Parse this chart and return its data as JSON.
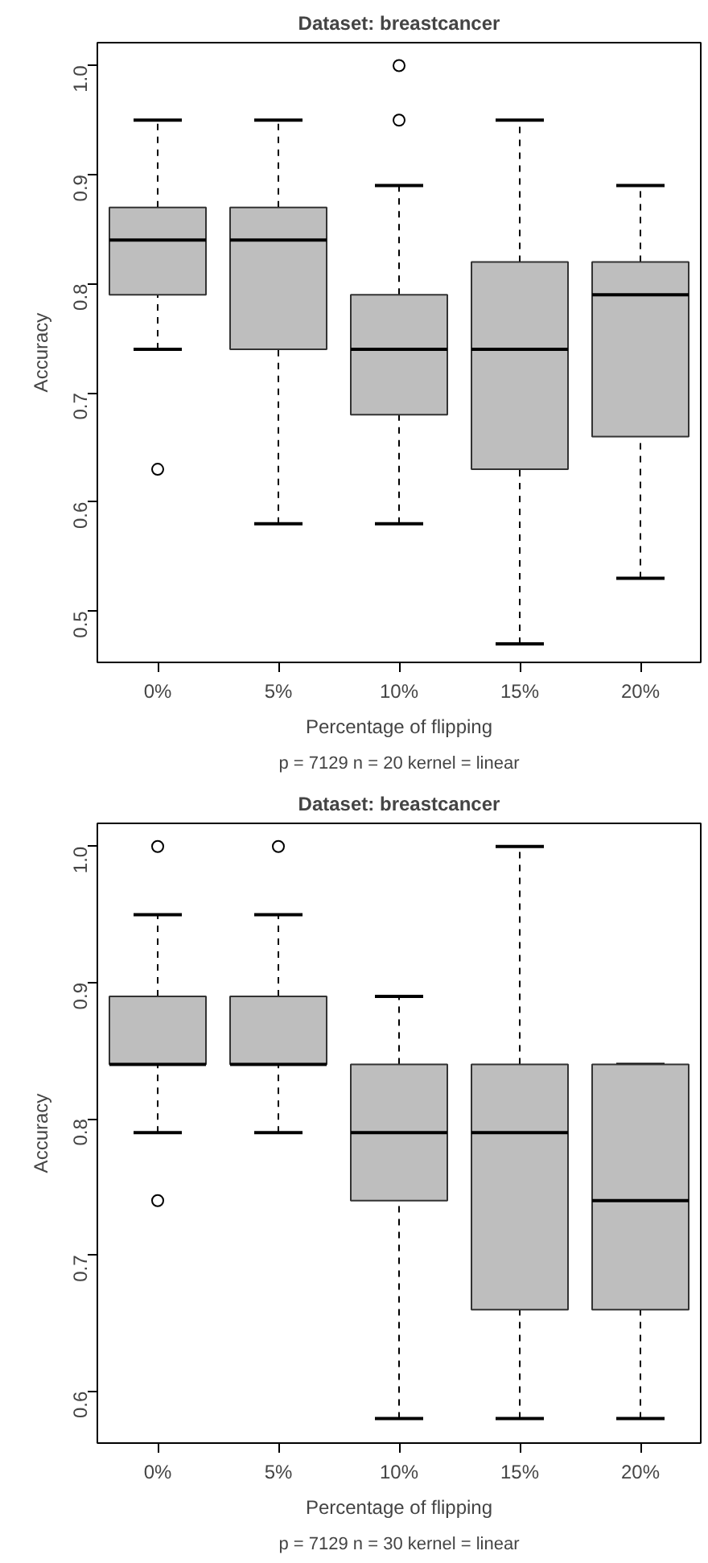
{
  "chart_data": [
    {
      "type": "box",
      "title": "Dataset: breastcancer",
      "subtitle": "p = 7129 n = 20 kernel = linear",
      "xlabel": "Percentage of flipping",
      "ylabel": "Accuracy",
      "categories": [
        "0%",
        "5%",
        "10%",
        "15%",
        "20%"
      ],
      "color": "#bebebe",
      "ylim": [
        0.453,
        1.021
      ],
      "yticks": [
        {
          "value": 0.5,
          "label": "0.5"
        },
        {
          "value": 0.6,
          "label": "0.6"
        },
        {
          "value": 0.7,
          "label": "0.7"
        },
        {
          "value": 0.8,
          "label": "0.8"
        },
        {
          "value": 0.9,
          "label": "0.9"
        },
        {
          "value": 1.0,
          "label": "1.0"
        }
      ],
      "boxes": [
        {
          "low": 0.74,
          "q1": 0.79,
          "median": 0.84,
          "q3": 0.87,
          "high": 0.95,
          "outliers": [
            0.63
          ]
        },
        {
          "low": 0.58,
          "q1": 0.74,
          "median": 0.84,
          "q3": 0.87,
          "high": 0.95
        },
        {
          "low": 0.58,
          "q1": 0.68,
          "median": 0.74,
          "q3": 0.79,
          "high": 0.89,
          "outliers": [
            1.0,
            0.95
          ]
        },
        {
          "low": 0.47,
          "q1": 0.63,
          "median": 0.74,
          "q3": 0.82,
          "high": 0.95
        },
        {
          "low": 0.53,
          "q1": 0.66,
          "median": 0.79,
          "q3": 0.82,
          "high": 0.89
        }
      ]
    },
    {
      "type": "box",
      "title": "Dataset: breastcancer",
      "subtitle": "p = 7129 n = 30 kernel = linear",
      "xlabel": "Percentage of flipping",
      "ylabel": "Accuracy",
      "categories": [
        "0%",
        "5%",
        "10%",
        "15%",
        "20%"
      ],
      "color": "#bebebe",
      "ylim": [
        0.562,
        1.017
      ],
      "yticks": [
        {
          "value": 0.6,
          "label": "0.6"
        },
        {
          "value": 0.7,
          "label": "0.7"
        },
        {
          "value": 0.8,
          "label": "0.8"
        },
        {
          "value": 0.9,
          "label": "0.9"
        },
        {
          "value": 1.0,
          "label": "1.0"
        }
      ],
      "boxes": [
        {
          "low": 0.79,
          "q1": 0.84,
          "median": 0.84,
          "q3": 0.89,
          "high": 0.95,
          "outliers": [
            1.0,
            0.74
          ]
        },
        {
          "low": 0.79,
          "q1": 0.84,
          "median": 0.84,
          "q3": 0.89,
          "high": 0.95,
          "outliers": [
            1.0
          ]
        },
        {
          "low": 0.58,
          "q1": 0.74,
          "median": 0.79,
          "q3": 0.84,
          "high": 0.89
        },
        {
          "low": 0.58,
          "q1": 0.66,
          "median": 0.79,
          "q3": 0.84,
          "high": 1.0
        },
        {
          "low": 0.58,
          "q1": 0.66,
          "median": 0.74,
          "q3": 0.84,
          "high": 0.84
        }
      ]
    }
  ]
}
